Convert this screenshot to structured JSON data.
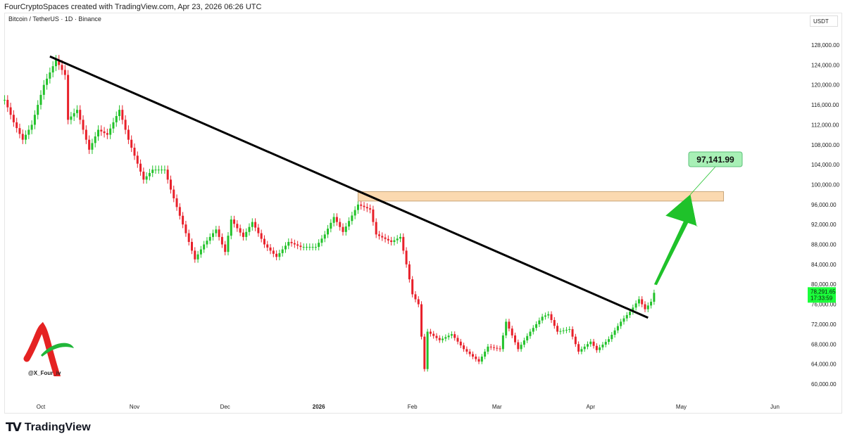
{
  "header": {
    "attribution": "FourCryptoSpaces created with TradingView.com, Apr 23, 2026 06:26 UTC",
    "symbol": "Bitcoin / TetherUS · 1D · Binance",
    "currency": "USDT"
  },
  "watermark": {
    "handle": "@X_Four_iv"
  },
  "footer": {
    "brand": "TradingView"
  },
  "colors": {
    "up": "#22c22a",
    "down": "#e8202a",
    "trendline": "#000000",
    "zone_fill": "#fbd9b0",
    "zone_border": "#c8a57a",
    "arrow": "#1fc22a",
    "label_bg": "#a8f0b6",
    "price_tag": "#1aff3a"
  },
  "chart_data": {
    "type": "candlestick",
    "title": "Bitcoin / TetherUS · 1D · Binance",
    "ylim": [
      58000,
      130000
    ],
    "y_ticks": [
      "128,000.00",
      "124,000.00",
      "120,000.00",
      "116,000.00",
      "112,000.00",
      "108,000.00",
      "104,000.00",
      "100,000.00",
      "96,000.00",
      "92,000.00",
      "88,000.00",
      "84,000.00",
      "80,000.00",
      "76,000.00",
      "72,000.00",
      "68,000.00",
      "64,000.00",
      "60,000.00"
    ],
    "x_ticks": [
      {
        "label": "Oct",
        "date": "2025-10-01"
      },
      {
        "label": "Nov",
        "date": "2025-11-01"
      },
      {
        "label": "Dec",
        "date": "2025-12-01"
      },
      {
        "label": "2026",
        "date": "2026-01-01"
      },
      {
        "label": "Feb",
        "date": "2026-02-01"
      },
      {
        "label": "Mar",
        "date": "2026-03-01"
      },
      {
        "label": "Apr",
        "date": "2026-04-01"
      },
      {
        "label": "May",
        "date": "2026-05-01"
      },
      {
        "label": "Jun",
        "date": "2026-06-01"
      }
    ],
    "closes": [
      [
        "2025-09-19",
        117000
      ],
      [
        "2025-09-22",
        112500
      ],
      [
        "2025-09-25",
        109000
      ],
      [
        "2025-09-28",
        112000
      ],
      [
        "2025-10-02",
        120000
      ],
      [
        "2025-10-06",
        125000
      ],
      [
        "2025-10-09",
        122000
      ],
      [
        "2025-10-10",
        113000
      ],
      [
        "2025-10-13",
        115000
      ],
      [
        "2025-10-17",
        107000
      ],
      [
        "2025-10-20",
        111000
      ],
      [
        "2025-10-23",
        110000
      ],
      [
        "2025-10-27",
        115000
      ],
      [
        "2025-10-30",
        109000
      ],
      [
        "2025-11-04",
        101000
      ],
      [
        "2025-11-07",
        103000
      ],
      [
        "2025-11-11",
        103000
      ],
      [
        "2025-11-13",
        99000
      ],
      [
        "2025-11-17",
        92000
      ],
      [
        "2025-11-21",
        85000
      ],
      [
        "2025-11-24",
        88000
      ],
      [
        "2025-11-28",
        91000
      ],
      [
        "2025-12-01",
        86500
      ],
      [
        "2025-12-03",
        93000
      ],
      [
        "2025-12-07",
        89500
      ],
      [
        "2025-12-10",
        92500
      ],
      [
        "2025-12-14",
        88000
      ],
      [
        "2025-12-18",
        85500
      ],
      [
        "2025-12-22",
        88500
      ],
      [
        "2025-12-26",
        87500
      ],
      [
        "2025-12-31",
        87500
      ],
      [
        "2026-01-03",
        90000
      ],
      [
        "2026-01-06",
        93500
      ],
      [
        "2026-01-09",
        90500
      ],
      [
        "2026-01-14",
        96000
      ],
      [
        "2026-01-18",
        95000
      ],
      [
        "2026-01-20",
        90000
      ],
      [
        "2026-01-25",
        88500
      ],
      [
        "2026-01-28",
        89500
      ],
      [
        "2026-01-30",
        84000
      ],
      [
        "2026-02-01",
        78000
      ],
      [
        "2026-02-03",
        76000
      ],
      [
        "2026-02-05",
        63000
      ],
      [
        "2026-02-06",
        70500
      ],
      [
        "2026-02-10",
        68800
      ],
      [
        "2026-02-14",
        70000
      ],
      [
        "2026-02-18",
        67000
      ],
      [
        "2026-02-23",
        64500
      ],
      [
        "2026-02-26",
        67500
      ],
      [
        "2026-03-02",
        67000
      ],
      [
        "2026-03-04",
        72500
      ],
      [
        "2026-03-08",
        67000
      ],
      [
        "2026-03-12",
        70500
      ],
      [
        "2026-03-16",
        73500
      ],
      [
        "2026-03-18",
        74000
      ],
      [
        "2026-03-21",
        70500
      ],
      [
        "2026-03-25",
        71000
      ],
      [
        "2026-03-28",
        66500
      ],
      [
        "2026-04-01",
        68500
      ],
      [
        "2026-04-03",
        66800
      ],
      [
        "2026-04-07",
        69000
      ],
      [
        "2026-04-11",
        72500
      ],
      [
        "2026-04-14",
        74500
      ],
      [
        "2026-04-17",
        77000
      ],
      [
        "2026-04-19",
        75000
      ],
      [
        "2026-04-21",
        76500
      ],
      [
        "2026-04-22",
        78291.65
      ]
    ],
    "last_price": {
      "value": "78,291.65",
      "countdown": "17:33:59"
    },
    "trendline": {
      "from": [
        "2025-10-04",
        125700
      ],
      "to": [
        "2026-04-20",
        73300
      ]
    },
    "resistance_zone": {
      "from": "2026-01-14",
      "to": "2026-05-15",
      "low": 96700,
      "high": 98600
    },
    "projection_arrow": {
      "from": [
        "2026-04-22",
        80000
      ],
      "to": [
        "2026-05-04",
        98000
      ]
    },
    "target_label": {
      "text": "97,141.99",
      "value": 97141.99
    }
  }
}
